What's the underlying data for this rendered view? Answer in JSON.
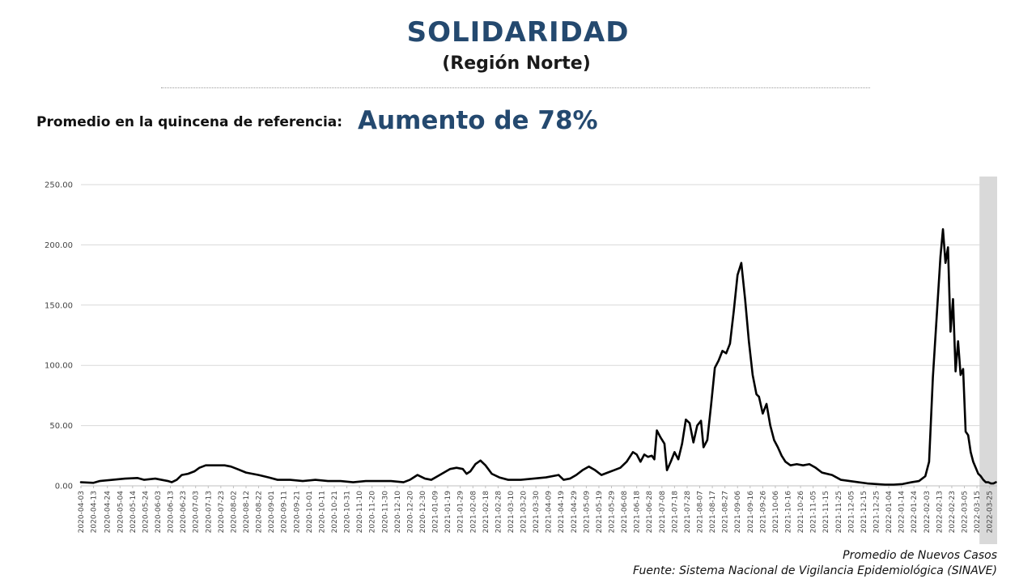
{
  "header": {
    "title": "SOLIDARIDAD",
    "subtitle": "(Región Norte)",
    "reference_label": "Promedio en la quincena de referencia:",
    "reference_value": "Aumento de 78%"
  },
  "footer": {
    "series_note": "Promedio de Nuevos Casos",
    "source": "Fuente: Sistema Nacional de Vigilancia Epidemiológica (SINAVE)"
  },
  "colors": {
    "title": "#24496f",
    "line": "#000000",
    "grid": "#d9d9d9",
    "shade": "#d9d9d9"
  },
  "chart_data": {
    "type": "line",
    "title": "",
    "xlabel": "",
    "ylabel": "",
    "ylim": [
      0,
      250
    ],
    "yticks": [
      0,
      50,
      100,
      150,
      200,
      250
    ],
    "ytick_labels": [
      "0.00",
      "50.00",
      "100.00",
      "150.00",
      "200.00",
      "250.00"
    ],
    "xlim": [
      "2020-04-03",
      "2022-03-31"
    ],
    "grid": "horizontal",
    "legend": "none",
    "xtick_labels": [
      "2020-04-03",
      "2020-04-13",
      "2020-04-24",
      "2020-05-04",
      "2020-05-14",
      "2020-05-24",
      "2020-06-03",
      "2020-06-13",
      "2020-06-23",
      "2020-07-03",
      "2020-07-13",
      "2020-07-23",
      "2020-08-02",
      "2020-08-12",
      "2020-08-22",
      "2020-09-01",
      "2020-09-11",
      "2020-09-21",
      "2020-10-01",
      "2020-10-11",
      "2020-10-21",
      "2020-10-31",
      "2020-11-10",
      "2020-11-20",
      "2020-11-30",
      "2020-12-10",
      "2020-12-20",
      "2020-12-30",
      "2021-01-09",
      "2021-01-19",
      "2021-01-29",
      "2021-02-08",
      "2021-02-18",
      "2021-02-28",
      "2021-03-10",
      "2021-03-20",
      "2021-03-30",
      "2021-04-09",
      "2021-04-19",
      "2021-04-29",
      "2021-05-09",
      "2021-05-19",
      "2021-05-29",
      "2021-06-08",
      "2021-06-18",
      "2021-06-28",
      "2021-07-08",
      "2021-07-18",
      "2021-07-28",
      "2021-08-07",
      "2021-08-17",
      "2021-08-27",
      "2021-09-06",
      "2021-09-16",
      "2021-09-26",
      "2021-10-06",
      "2021-10-16",
      "2021-10-26",
      "2021-11-05",
      "2021-11-15",
      "2021-11-25",
      "2021-12-05",
      "2021-12-15",
      "2021-12-25",
      "2022-01-04",
      "2022-01-14",
      "2022-01-24",
      "2022-02-03",
      "2022-02-13",
      "2022-02-23",
      "2022-03-05",
      "2022-03-15",
      "2022-03-25"
    ],
    "shaded_region": {
      "from": "2022-03-17",
      "to": "2022-03-31"
    },
    "series": [
      {
        "color": "#000000",
        "points": [
          [
            "2020-04-03",
            3
          ],
          [
            "2020-04-13",
            2.5
          ],
          [
            "2020-04-18",
            4
          ],
          [
            "2020-04-28",
            5
          ],
          [
            "2020-05-08",
            6
          ],
          [
            "2020-05-18",
            6.5
          ],
          [
            "2020-05-23",
            5
          ],
          [
            "2020-06-01",
            6
          ],
          [
            "2020-06-06",
            5
          ],
          [
            "2020-06-11",
            4
          ],
          [
            "2020-06-14",
            3
          ],
          [
            "2020-06-18",
            5
          ],
          [
            "2020-06-22",
            9
          ],
          [
            "2020-06-27",
            10
          ],
          [
            "2020-07-02",
            12
          ],
          [
            "2020-07-06",
            15
          ],
          [
            "2020-07-11",
            17
          ],
          [
            "2020-07-16",
            17
          ],
          [
            "2020-07-26",
            17
          ],
          [
            "2020-07-31",
            16
          ],
          [
            "2020-08-05",
            14
          ],
          [
            "2020-08-12",
            11
          ],
          [
            "2020-08-22",
            9
          ],
          [
            "2020-08-30",
            7
          ],
          [
            "2020-09-06",
            5
          ],
          [
            "2020-09-16",
            5
          ],
          [
            "2020-09-26",
            4
          ],
          [
            "2020-10-06",
            5
          ],
          [
            "2020-10-16",
            4
          ],
          [
            "2020-10-26",
            4
          ],
          [
            "2020-11-05",
            3
          ],
          [
            "2020-11-15",
            4
          ],
          [
            "2020-11-25",
            4
          ],
          [
            "2020-12-05",
            4
          ],
          [
            "2020-12-15",
            3
          ],
          [
            "2020-12-20",
            5
          ],
          [
            "2020-12-26",
            9
          ],
          [
            "2021-01-01",
            6
          ],
          [
            "2021-01-06",
            5
          ],
          [
            "2021-01-11",
            8
          ],
          [
            "2021-01-16",
            11
          ],
          [
            "2021-01-21",
            14
          ],
          [
            "2021-01-26",
            15
          ],
          [
            "2021-01-31",
            14
          ],
          [
            "2021-02-03",
            10
          ],
          [
            "2021-02-06",
            12
          ],
          [
            "2021-02-10",
            18
          ],
          [
            "2021-02-14",
            21
          ],
          [
            "2021-02-18",
            17
          ],
          [
            "2021-02-23",
            10
          ],
          [
            "2021-03-01",
            7
          ],
          [
            "2021-03-08",
            5
          ],
          [
            "2021-03-18",
            5
          ],
          [
            "2021-03-28",
            6
          ],
          [
            "2021-04-07",
            7
          ],
          [
            "2021-04-17",
            9
          ],
          [
            "2021-04-21",
            5
          ],
          [
            "2021-04-26",
            6
          ],
          [
            "2021-05-01",
            9
          ],
          [
            "2021-05-06",
            13
          ],
          [
            "2021-05-11",
            16
          ],
          [
            "2021-05-16",
            13
          ],
          [
            "2021-05-21",
            9
          ],
          [
            "2021-05-26",
            11
          ],
          [
            "2021-05-31",
            13
          ],
          [
            "2021-06-05",
            15
          ],
          [
            "2021-06-10",
            20
          ],
          [
            "2021-06-15",
            28
          ],
          [
            "2021-06-18",
            26
          ],
          [
            "2021-06-21",
            20
          ],
          [
            "2021-06-24",
            26
          ],
          [
            "2021-06-27",
            24
          ],
          [
            "2021-06-30",
            25
          ],
          [
            "2021-07-02",
            22
          ],
          [
            "2021-07-04",
            46
          ],
          [
            "2021-07-07",
            40
          ],
          [
            "2021-07-10",
            35
          ],
          [
            "2021-07-12",
            13
          ],
          [
            "2021-07-15",
            20
          ],
          [
            "2021-07-18",
            28
          ],
          [
            "2021-07-21",
            22
          ],
          [
            "2021-07-24",
            35
          ],
          [
            "2021-07-27",
            55
          ],
          [
            "2021-07-30",
            52
          ],
          [
            "2021-08-02",
            36
          ],
          [
            "2021-08-05",
            50
          ],
          [
            "2021-08-08",
            54
          ],
          [
            "2021-08-10",
            32
          ],
          [
            "2021-08-13",
            38
          ],
          [
            "2021-08-16",
            67
          ],
          [
            "2021-08-19",
            98
          ],
          [
            "2021-08-22",
            104
          ],
          [
            "2021-08-25",
            112
          ],
          [
            "2021-08-28",
            110
          ],
          [
            "2021-08-31",
            118
          ],
          [
            "2021-09-03",
            145
          ],
          [
            "2021-09-06",
            175
          ],
          [
            "2021-09-09",
            185
          ],
          [
            "2021-09-12",
            155
          ],
          [
            "2021-09-15",
            120
          ],
          [
            "2021-09-18",
            92
          ],
          [
            "2021-09-21",
            76
          ],
          [
            "2021-09-23",
            74
          ],
          [
            "2021-09-26",
            60
          ],
          [
            "2021-09-29",
            68
          ],
          [
            "2021-10-02",
            50
          ],
          [
            "2021-10-05",
            38
          ],
          [
            "2021-10-08",
            32
          ],
          [
            "2021-10-11",
            25
          ],
          [
            "2021-10-14",
            20
          ],
          [
            "2021-10-18",
            17
          ],
          [
            "2021-10-23",
            18
          ],
          [
            "2021-10-28",
            17
          ],
          [
            "2021-11-02",
            18
          ],
          [
            "2021-11-07",
            15
          ],
          [
            "2021-11-12",
            11
          ],
          [
            "2021-11-20",
            9
          ],
          [
            "2021-11-27",
            5
          ],
          [
            "2021-12-04",
            4
          ],
          [
            "2021-12-11",
            3
          ],
          [
            "2021-12-18",
            2
          ],
          [
            "2021-12-25",
            1.5
          ],
          [
            "2022-01-01",
            1
          ],
          [
            "2022-01-08",
            1
          ],
          [
            "2022-01-15",
            1.5
          ],
          [
            "2022-01-22",
            3
          ],
          [
            "2022-01-28",
            4
          ],
          [
            "2022-02-02",
            8
          ],
          [
            "2022-02-05",
            20
          ],
          [
            "2022-02-08",
            90
          ],
          [
            "2022-02-11",
            140
          ],
          [
            "2022-02-14",
            190
          ],
          [
            "2022-02-16",
            213
          ],
          [
            "2022-02-18",
            185
          ],
          [
            "2022-02-20",
            198
          ],
          [
            "2022-02-22",
            128
          ],
          [
            "2022-02-24",
            155
          ],
          [
            "2022-02-26",
            95
          ],
          [
            "2022-02-28",
            120
          ],
          [
            "2022-03-02",
            92
          ],
          [
            "2022-03-04",
            97
          ],
          [
            "2022-03-06",
            45
          ],
          [
            "2022-03-08",
            42
          ],
          [
            "2022-03-10",
            28
          ],
          [
            "2022-03-12",
            20
          ],
          [
            "2022-03-14",
            15
          ],
          [
            "2022-03-16",
            10
          ],
          [
            "2022-03-18",
            8
          ],
          [
            "2022-03-20",
            5
          ],
          [
            "2022-03-22",
            3
          ],
          [
            "2022-03-24",
            3
          ],
          [
            "2022-03-26",
            2
          ],
          [
            "2022-03-28",
            2
          ],
          [
            "2022-03-30",
            3
          ]
        ]
      }
    ]
  }
}
